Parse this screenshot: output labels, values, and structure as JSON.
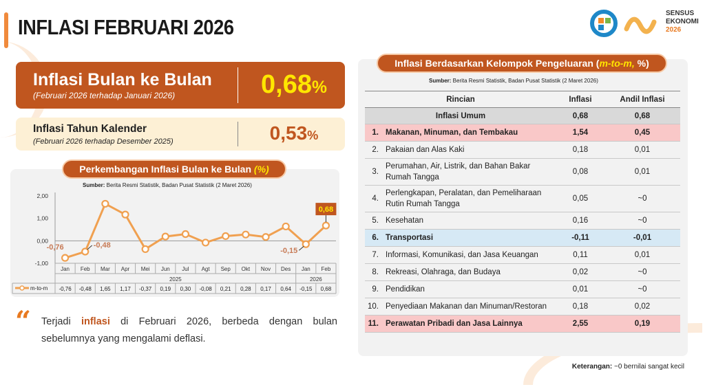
{
  "title": "INFLASI FEBRUARI 2026",
  "logo": {
    "line1": "SENSUS",
    "line2": "EKONOMI",
    "line3": "2026"
  },
  "mtm": {
    "label": "Inflasi Bulan ke Bulan",
    "sub": "(Februari 2026 terhadap Januari 2026)",
    "value": "0,68",
    "unit": "%"
  },
  "ytd": {
    "label": "Inflasi Tahun Kalender",
    "sub": "(Februari 2026 terhadap Desember 2025)",
    "value": "0,53",
    "unit": "%"
  },
  "chart_panel": {
    "title": "Perkembangan Inflasi Bulan ke Bulan",
    "title_unit": "(%)",
    "source_label": "Sumber:",
    "source": " Berita Resmi Statistik, Badan Pusat Statistik (2 Maret 2026)"
  },
  "chart_data": {
    "type": "line",
    "categories": [
      "Jan",
      "Feb",
      "Mar",
      "Apr",
      "Mei",
      "Jun",
      "Jul",
      "Agt",
      "Sep",
      "Okt",
      "Nov",
      "Des",
      "Jan",
      "Feb"
    ],
    "year_groups": [
      {
        "label": "2025",
        "count": 12
      },
      {
        "label": "2026",
        "count": 2
      }
    ],
    "series": [
      {
        "name": "m-to-m",
        "values": [
          -0.76,
          -0.48,
          1.65,
          1.17,
          -0.37,
          0.19,
          0.3,
          -0.08,
          0.21,
          0.28,
          0.17,
          0.64,
          -0.15,
          0.68
        ],
        "labels": [
          "-0,76",
          "-0,48",
          "1,65",
          "1,17",
          "-0,37",
          "0,19",
          "0,30",
          "-0,08",
          "0,21",
          "0,28",
          "0,17",
          "0,64",
          "-0,15",
          "0,68"
        ]
      }
    ],
    "ylim": [
      -1,
      2
    ],
    "yticks": [
      "-1,00",
      "0,00",
      "1,00",
      "2,00"
    ],
    "annotations": [
      "-0,76",
      "-0,48",
      "-0,15",
      "0,68"
    ],
    "color": "#f0a050",
    "highlight_color": "#c0561f",
    "grid": false,
    "legend": "bottom-table"
  },
  "quote": {
    "pre": "Terjadi ",
    "highlight": "inflasi",
    "post": " di Februari 2026, berbeda dengan bulan sebelumnya yang mengalami deflasi."
  },
  "table_panel": {
    "title": "Inflasi Berdasarkan Kelompok Pengeluaran (",
    "title_em": "m-to-m,",
    "title_end": " %)",
    "source_label": "Sumber:",
    "source": " Berita Resmi Statistik, Badan Pusat Statistik (2 Maret 2026)"
  },
  "table": {
    "headers": [
      "Rincian",
      "Inflasi",
      "Andil Inflasi"
    ],
    "general": {
      "label": "Inflasi Umum",
      "inflasi": "0,68",
      "andil": "0,68"
    },
    "rows": [
      {
        "no": "1.",
        "label": "Makanan, Minuman, dan Tembakau",
        "inflasi": "1,54",
        "andil": "0,45",
        "hl": "red"
      },
      {
        "no": "2.",
        "label": "Pakaian dan Alas Kaki",
        "inflasi": "0,18",
        "andil": "0,01"
      },
      {
        "no": "3.",
        "label": "Perumahan, Air, Listrik, dan Bahan Bakar Rumah Tangga",
        "inflasi": "0,08",
        "andil": "0,01"
      },
      {
        "no": "4.",
        "label": "Perlengkapan, Peralatan, dan Pemeliharaan Rutin Rumah Tangga",
        "inflasi": "0,05",
        "andil": "~0"
      },
      {
        "no": "5.",
        "label": "Kesehatan",
        "inflasi": "0,16",
        "andil": "~0"
      },
      {
        "no": "6.",
        "label": "Transportasi",
        "inflasi": "-0,11",
        "andil": "-0,01",
        "hl": "blue"
      },
      {
        "no": "7.",
        "label": "Informasi, Komunikasi, dan Jasa Keuangan",
        "inflasi": "0,11",
        "andil": "0,01"
      },
      {
        "no": "8.",
        "label": "Rekreasi, Olahraga, dan Budaya",
        "inflasi": "0,02",
        "andil": "~0"
      },
      {
        "no": "9.",
        "label": "Pendidikan",
        "inflasi": "0,01",
        "andil": "~0"
      },
      {
        "no": "10.",
        "label": "Penyediaan Makanan dan Minuman/Restoran",
        "inflasi": "0,18",
        "andil": "0,02"
      },
      {
        "no": "11.",
        "label": "Perawatan Pribadi dan Jasa Lainnya",
        "inflasi": "2,55",
        "andil": "0,19",
        "hl": "red"
      }
    ]
  },
  "note": {
    "label": "Keterangan:",
    "text": " ~0 bernilai sangat kecil"
  }
}
